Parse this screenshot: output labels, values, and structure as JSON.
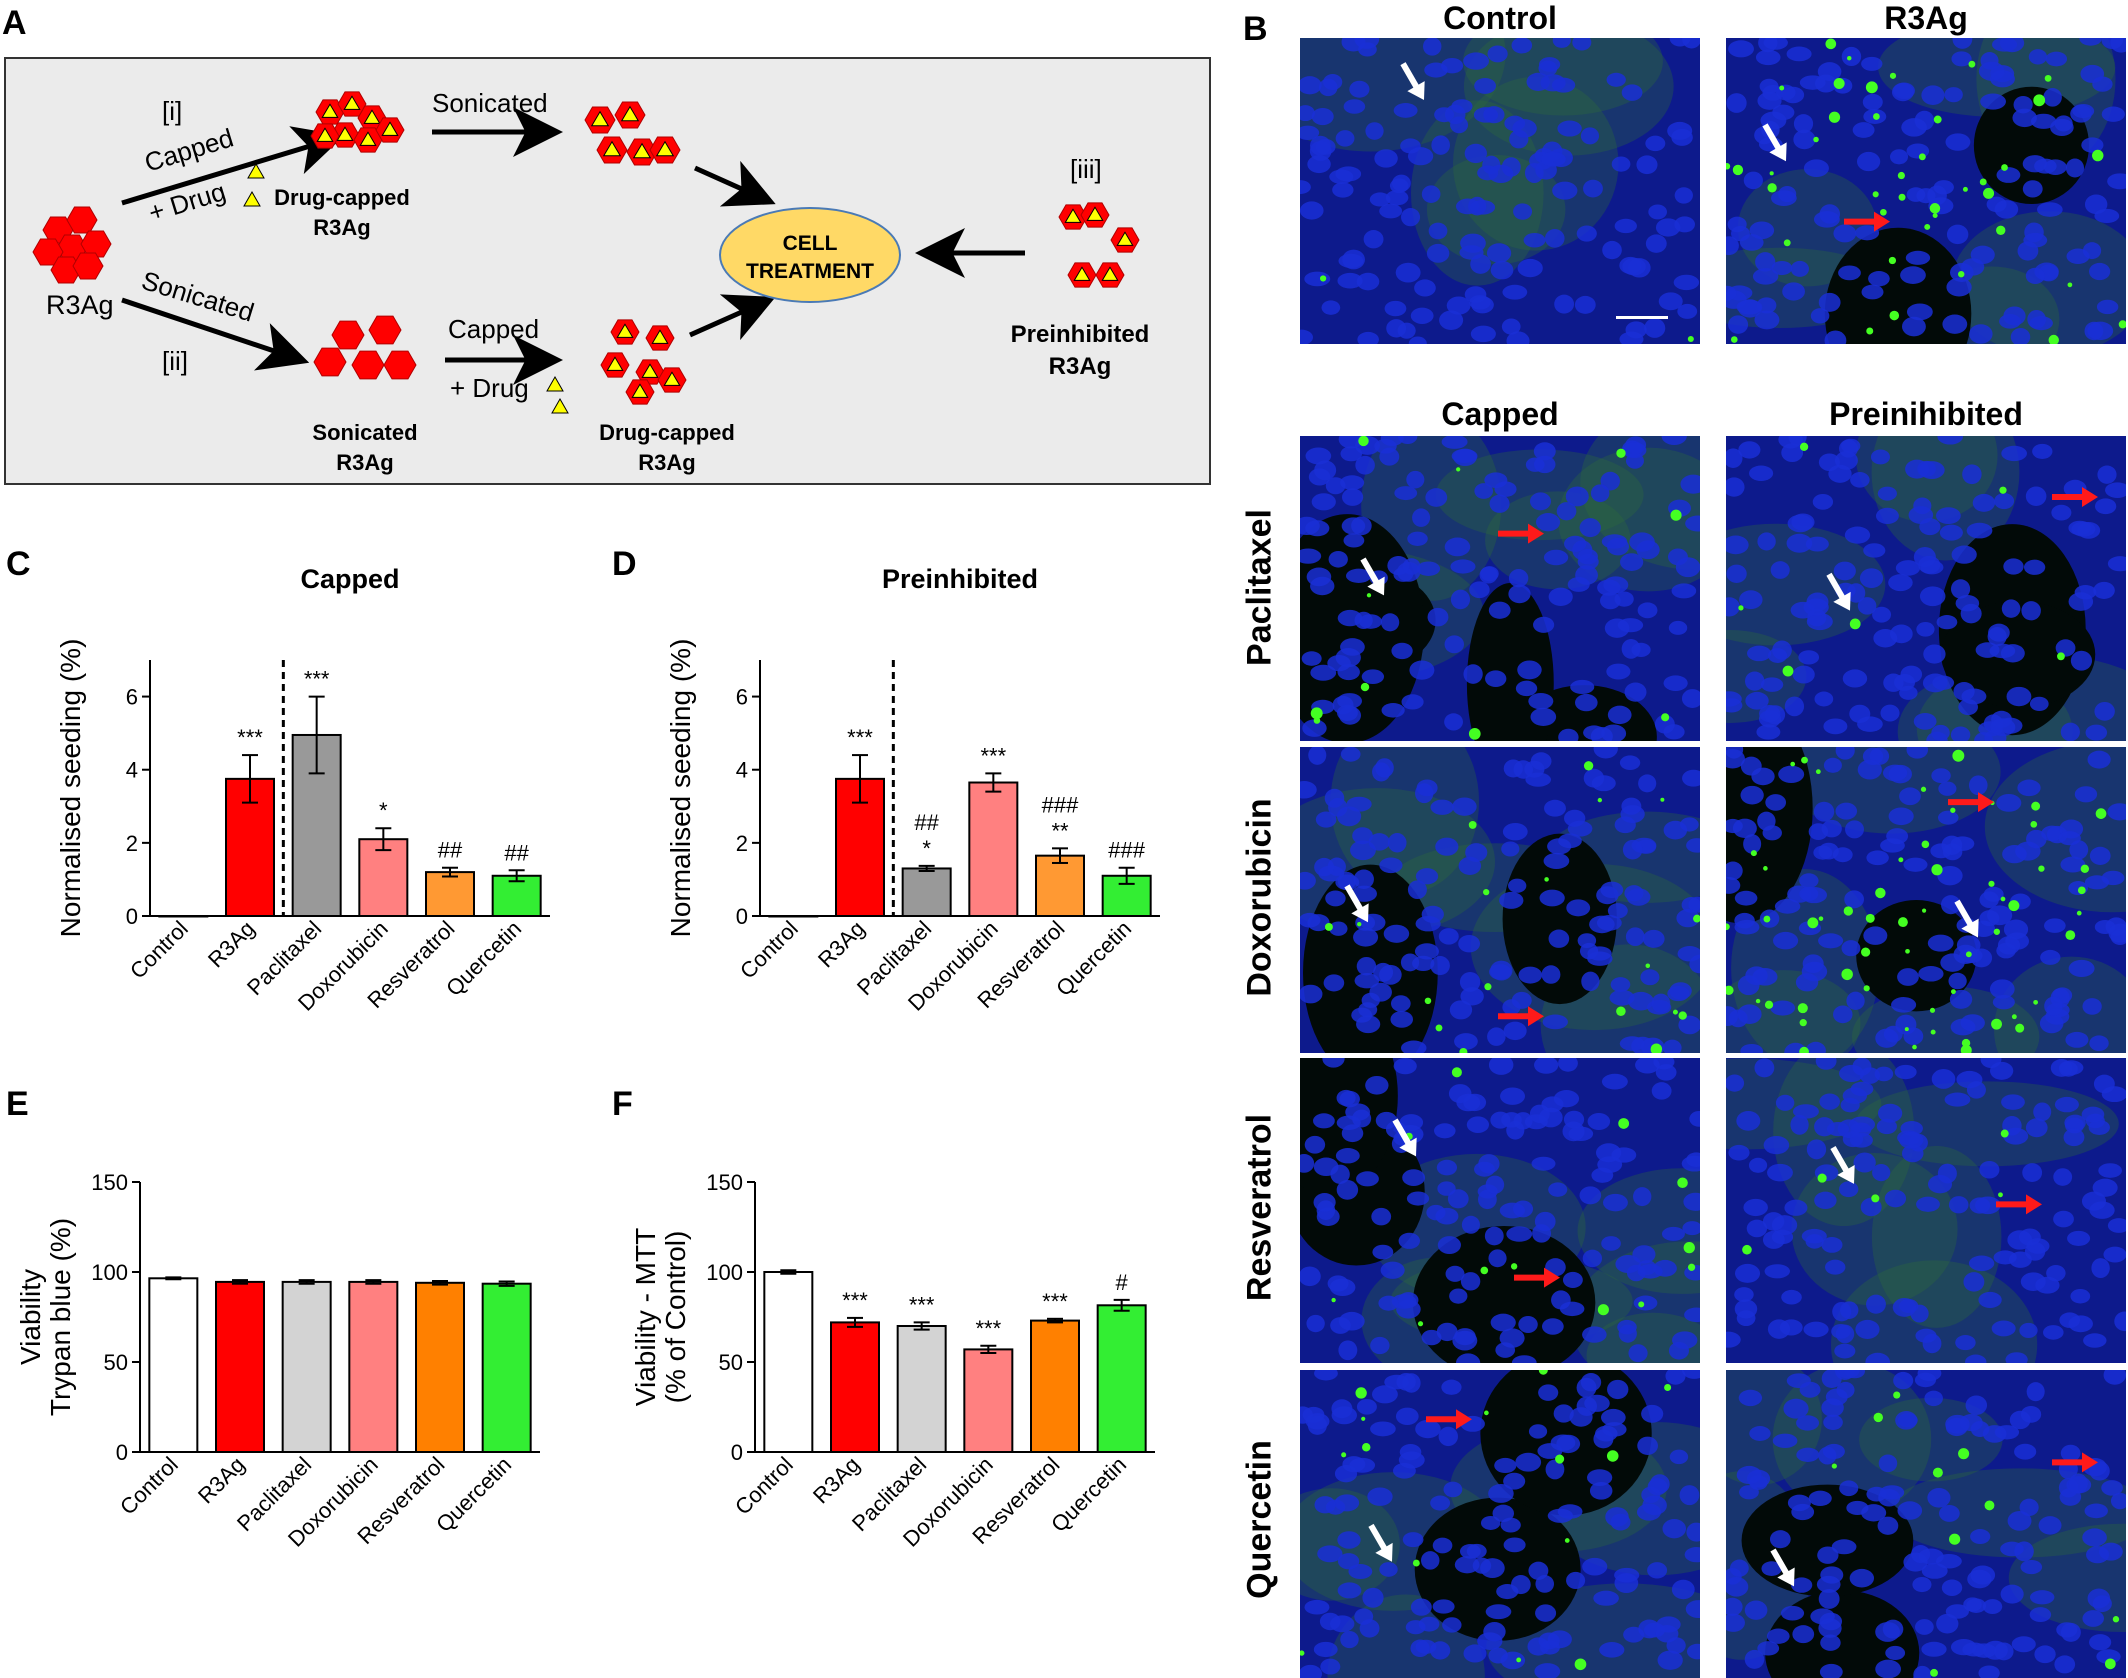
{
  "panel_letters": [
    "A",
    "B",
    "C",
    "D",
    "E",
    "F"
  ],
  "schematic": {
    "start_label": "R3Ag",
    "route_i": "[i]",
    "route_ii": "[ii]",
    "route_iii": "[iii]",
    "capped_arrow_label": "Capped",
    "drug_label": "+ Drug",
    "sonicated_arrow_label": "Sonicated",
    "sonicated_label_bottom": "Sonicated",
    "capped_label_bottom": "Capped",
    "drug_label_bottom": "+ Drug",
    "drug_capped_top": [
      "Drug-capped",
      "R3Ag"
    ],
    "sonicated_r3ag": [
      "Sonicated",
      "R3Ag"
    ],
    "drug_capped_bottom": [
      "Drug-capped",
      "R3Ag"
    ],
    "preinhibited": [
      "Preinhibited",
      "R3Ag"
    ],
    "cell_treatment": [
      "CELL",
      "TREATMENT"
    ],
    "colors": {
      "panel_bg": "#ebebeb",
      "hexagon": "#ff0000",
      "triangle": "#ffff00",
      "ellipse": "#ffd966"
    }
  },
  "micrographs": {
    "column_headers_top": [
      "Control",
      "R3Ag"
    ],
    "column_headers_bottom": [
      "Capped",
      "Preinihibited"
    ],
    "row_labels": [
      "Paclitaxel",
      "Doxorubicin",
      "Resveratrol",
      "Quercetin"
    ],
    "colors": {
      "nuclei": "#1a2fd6",
      "green_signal": "#44ff22",
      "white_arrow": "#ffffff",
      "red_arrow": "#ff1a1a"
    }
  },
  "chart_data": [
    {
      "id": "C",
      "type": "bar",
      "title": "Capped",
      "ylabel": "Normalised seeding (%)",
      "xlabel": "",
      "ylim": [
        0,
        7
      ],
      "yticks": [
        0,
        2,
        4,
        6
      ],
      "categories": [
        "Control",
        "R3Ag",
        "Paclitaxel",
        "Doxorubicin",
        "Resveratrol",
        "Quercetin"
      ],
      "values": [
        0.0,
        3.75,
        4.95,
        2.1,
        1.2,
        1.1
      ],
      "errors": [
        0.0,
        0.65,
        1.05,
        0.3,
        0.12,
        0.15
      ],
      "annotations": [
        "",
        "***",
        "***",
        "*",
        "##",
        "##"
      ],
      "colors": [
        "#ffffff",
        "#ff0000",
        "#999999",
        "#ff8080",
        "#ff9933",
        "#33ee33"
      ],
      "divider_after_index": 1
    },
    {
      "id": "D",
      "type": "bar",
      "title": "Preinhibited",
      "ylabel": "Normalised seeding (%)",
      "xlabel": "",
      "ylim": [
        0,
        7
      ],
      "yticks": [
        0,
        2,
        4,
        6
      ],
      "categories": [
        "Control",
        "R3Ag",
        "Paclitaxel",
        "Doxorubicin",
        "Resveratrol",
        "Quercetin"
      ],
      "values": [
        0.0,
        3.75,
        1.3,
        3.65,
        1.65,
        1.1
      ],
      "errors": [
        0.0,
        0.65,
        0.07,
        0.25,
        0.2,
        0.22
      ],
      "annotations": [
        "",
        "***",
        "*",
        "***",
        "**",
        "###"
      ],
      "annotations_top": [
        "",
        "",
        "##",
        "",
        "###",
        ""
      ],
      "colors": [
        "#ffffff",
        "#ff0000",
        "#999999",
        "#ff8080",
        "#ff9933",
        "#33ee33"
      ],
      "divider_after_index": 1
    },
    {
      "id": "E",
      "type": "bar",
      "title": "",
      "ylabel": [
        "Viability",
        "Trypan blue (%)"
      ],
      "xlabel": "",
      "ylim": [
        0,
        150
      ],
      "yticks": [
        0,
        50,
        100,
        150
      ],
      "categories": [
        "Control",
        "R3Ag",
        "Paclitaxel",
        "Doxorubicin",
        "Resveratrol",
        "Quercetin"
      ],
      "values": [
        96.5,
        94.5,
        94.5,
        94.5,
        94.0,
        93.5
      ],
      "errors": [
        0.5,
        1.0,
        1.0,
        1.0,
        1.0,
        1.2
      ],
      "annotations": [
        "",
        "",
        "",
        "",
        "",
        ""
      ],
      "colors": [
        "#ffffff",
        "#ff0000",
        "#d3d3d3",
        "#ff8080",
        "#ff8000",
        "#33ee33"
      ]
    },
    {
      "id": "F",
      "type": "bar",
      "title": "",
      "ylabel": [
        "Viability - MTT",
        "(% of Control)"
      ],
      "xlabel": "",
      "ylim": [
        0,
        150
      ],
      "yticks": [
        0,
        50,
        100,
        150
      ],
      "categories": [
        "Control",
        "R3Ag",
        "Paclitaxel",
        "Doxorubicin",
        "Resveratrol",
        "Quercetin"
      ],
      "values": [
        100,
        72,
        70,
        57,
        73,
        81.5
      ],
      "errors": [
        1.0,
        2.5,
        2.0,
        2.0,
        1.0,
        3.0
      ],
      "annotations": [
        "",
        "***",
        "***",
        "***",
        "***",
        "#"
      ],
      "colors": [
        "#ffffff",
        "#ff0000",
        "#d3d3d3",
        "#ff8080",
        "#ff8000",
        "#33ee33"
      ]
    }
  ]
}
